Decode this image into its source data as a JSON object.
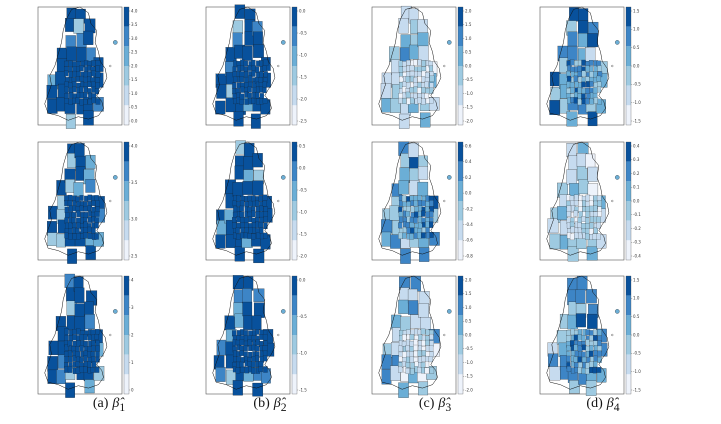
{
  "palette": [
    "#eef3fb",
    "#c6dbef",
    "#9ecae1",
    "#6baed6",
    "#3d85c6",
    "#08519c"
  ],
  "columns": [
    {
      "label": "(a)",
      "symbol": "β̂",
      "subscript": "1"
    },
    {
      "label": "(b)",
      "symbol": "β̂",
      "subscript": "2"
    },
    {
      "label": "(c)",
      "symbol": "β̂",
      "subscript": "3"
    },
    {
      "label": "(d)",
      "symbol": "β̂",
      "subscript": "4"
    }
  ],
  "chart_data": {
    "type": "heatmap",
    "grid": {
      "rows": 3,
      "cols": 4
    },
    "panels": [
      {
        "id": "a1",
        "column": 0,
        "row": 0,
        "legend_ticks": [
          "4.0",
          "3.5",
          "3.0",
          "2.5",
          "2.0",
          "1.5",
          "1.0",
          "0.5",
          "0.0"
        ],
        "tone": "dark"
      },
      {
        "id": "b1",
        "column": 1,
        "row": 0,
        "legend_ticks": [
          "0.0",
          "-0.5",
          "-1.0",
          "-1.5",
          "-2.0",
          "-2.5"
        ],
        "tone": "dark"
      },
      {
        "id": "c1",
        "column": 2,
        "row": 0,
        "legend_ticks": [
          "2.0",
          "1.5",
          "1.0",
          "0.5",
          "0.0",
          "-0.5",
          "-1.0",
          "-1.5",
          "-2.0"
        ],
        "tone": "light"
      },
      {
        "id": "d1",
        "column": 3,
        "row": 0,
        "legend_ticks": [
          "1.5",
          "1.0",
          "0.5",
          "0.0",
          "-0.5",
          "-1.0",
          "-1.5"
        ],
        "tone": "mid"
      },
      {
        "id": "a2",
        "column": 0,
        "row": 1,
        "legend_ticks": [
          "4.0",
          "3.5",
          "3.0",
          "2.5"
        ],
        "tone": "dark"
      },
      {
        "id": "b2",
        "column": 1,
        "row": 1,
        "legend_ticks": [
          "0.5",
          "0.0",
          "-0.5",
          "-1.0",
          "-1.5",
          "-2.0"
        ],
        "tone": "dark"
      },
      {
        "id": "c2",
        "column": 2,
        "row": 1,
        "legend_ticks": [
          "0.6",
          "0.4",
          "0.2",
          "0.0",
          "-0.2",
          "-0.4",
          "-0.6",
          "-0.8"
        ],
        "tone": "mid"
      },
      {
        "id": "d2",
        "column": 3,
        "row": 1,
        "legend_ticks": [
          "0.4",
          "0.3",
          "0.2",
          "0.1",
          "0.0",
          "-0.1",
          "-0.2",
          "-0.3",
          "-0.4"
        ],
        "tone": "light"
      },
      {
        "id": "a3",
        "column": 0,
        "row": 2,
        "legend_ticks": [
          "4",
          "3",
          "2",
          "1",
          "0"
        ],
        "tone": "dark"
      },
      {
        "id": "b3",
        "column": 1,
        "row": 2,
        "legend_ticks": [
          "0.0",
          "-0.5",
          "-1.0",
          "-1.5"
        ],
        "tone": "dark"
      },
      {
        "id": "c3",
        "column": 2,
        "row": 2,
        "legend_ticks": [
          "2.0",
          "1.5",
          "1.0",
          "0.5",
          "0.0",
          "-0.5",
          "-1.0",
          "-1.5",
          "-2.0"
        ],
        "tone": "light"
      },
      {
        "id": "d3",
        "column": 3,
        "row": 2,
        "legend_ticks": [
          "1.5",
          "1.0",
          "0.5",
          "0.0",
          "-0.5",
          "-1.0",
          "-1.5"
        ],
        "tone": "mid"
      }
    ]
  }
}
